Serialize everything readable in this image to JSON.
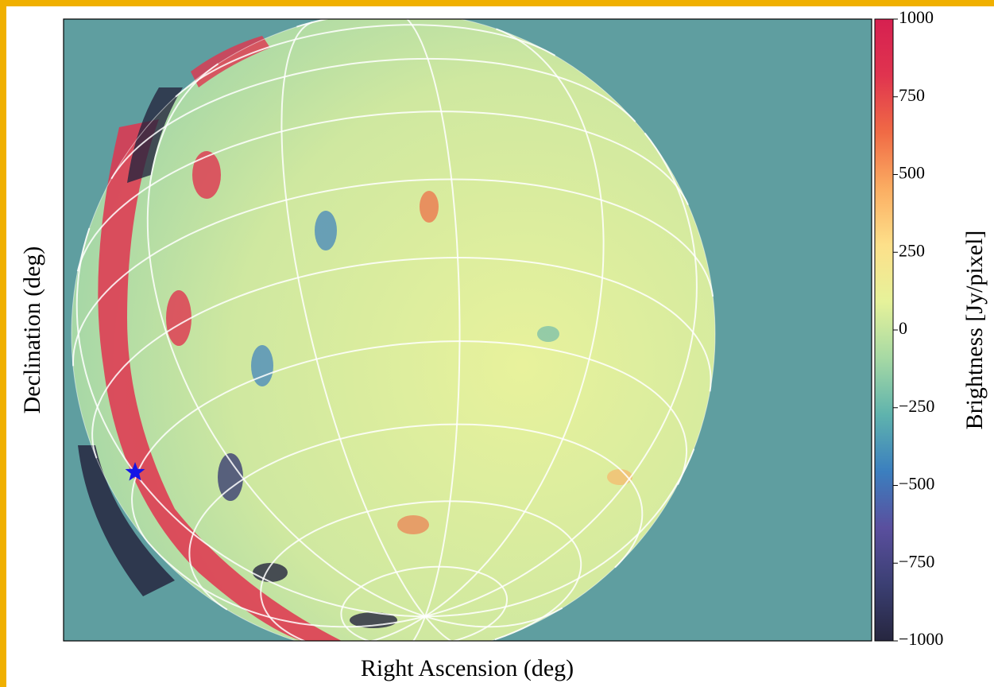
{
  "chart_data": {
    "type": "image",
    "x_label": "Right Ascension (deg)",
    "y_label": "Declination (deg)",
    "colorbar_label": "Brightness [Jy/pixel]",
    "clim": [
      -1000,
      1000
    ],
    "colorbar_ticks": [
      {
        "value": -1000,
        "label": "−1000"
      },
      {
        "value": -750,
        "label": "−750"
      },
      {
        "value": -500,
        "label": "−500"
      },
      {
        "value": -250,
        "label": "−250"
      },
      0,
      250,
      500,
      750,
      1000
    ],
    "colormap": [
      "#26263f",
      "#3b3f73",
      "#5a4f9e",
      "#3b7fbf",
      "#5fb3ad",
      "#a6d9a4",
      "#e6f29a",
      "#fde08a",
      "#fbad62",
      "#f06a45",
      "#e0344f",
      "#d62050"
    ],
    "background_color": "#5f9ea0",
    "marker_color": "#1414e6"
  }
}
